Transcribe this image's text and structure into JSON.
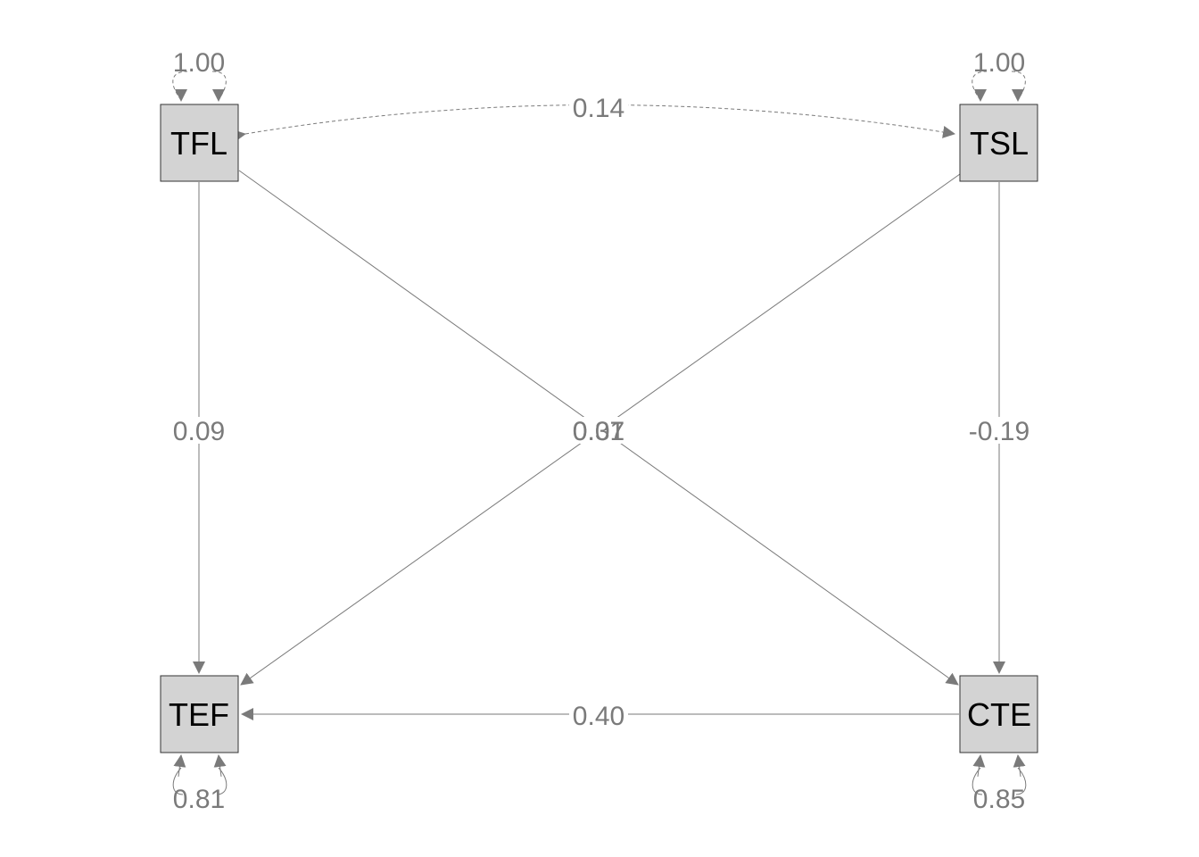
{
  "diagram": {
    "nodes": {
      "tfl": "TFL",
      "tsl": "TSL",
      "tef": "TEF",
      "cte": "CTE"
    },
    "edges": {
      "tfl_variance": "1.00",
      "tsl_variance": "1.00",
      "tef_residual": "0.81",
      "cte_residual": "0.85",
      "tfl_tsl_covariance": "0.14",
      "tfl_to_tef": "0.09",
      "tsl_to_cte": "-0.19",
      "cte_to_tef": "0.40",
      "tfl_to_cte": "0.07",
      "tsl_to_tef": "0.31"
    }
  }
}
